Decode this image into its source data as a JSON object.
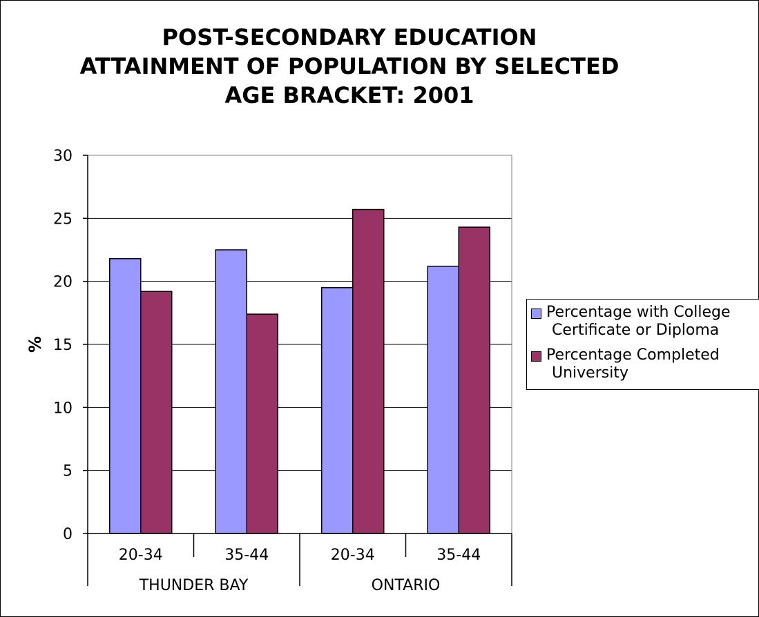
{
  "chart_data": {
    "type": "bar",
    "title": [
      "POST-SECONDARY EDUCATION",
      "ATTAINMENT OF POPULATION BY SELECTED",
      "AGE BRACKET: 2001"
    ],
    "ylabel": "%",
    "ylim": [
      0,
      30
    ],
    "yticks": [
      "0",
      "5",
      "10",
      "15",
      "20",
      "25",
      "30"
    ],
    "categories": [
      "20-34",
      "35-44",
      "20-34",
      "35-44"
    ],
    "groups": [
      {
        "label": "THUNDER BAY",
        "categories": [
          "20-34",
          "35-44"
        ]
      },
      {
        "label": "ONTARIO",
        "categories": [
          "20-34",
          "35-44"
        ]
      }
    ],
    "series": [
      {
        "name": "Percentage with College Certificate or Diploma",
        "name_lines": [
          "Percentage with College",
          "Certificate or Diploma"
        ],
        "color": "#9999ff",
        "values": [
          21.8,
          22.5,
          19.5,
          21.2
        ]
      },
      {
        "name": "Percentage Completed University",
        "name_lines": [
          "Percentage Completed",
          "University"
        ],
        "color": "#993366",
        "values": [
          19.2,
          17.4,
          25.7,
          24.3
        ]
      }
    ],
    "grid": "horizontal",
    "legend_position": "right"
  }
}
